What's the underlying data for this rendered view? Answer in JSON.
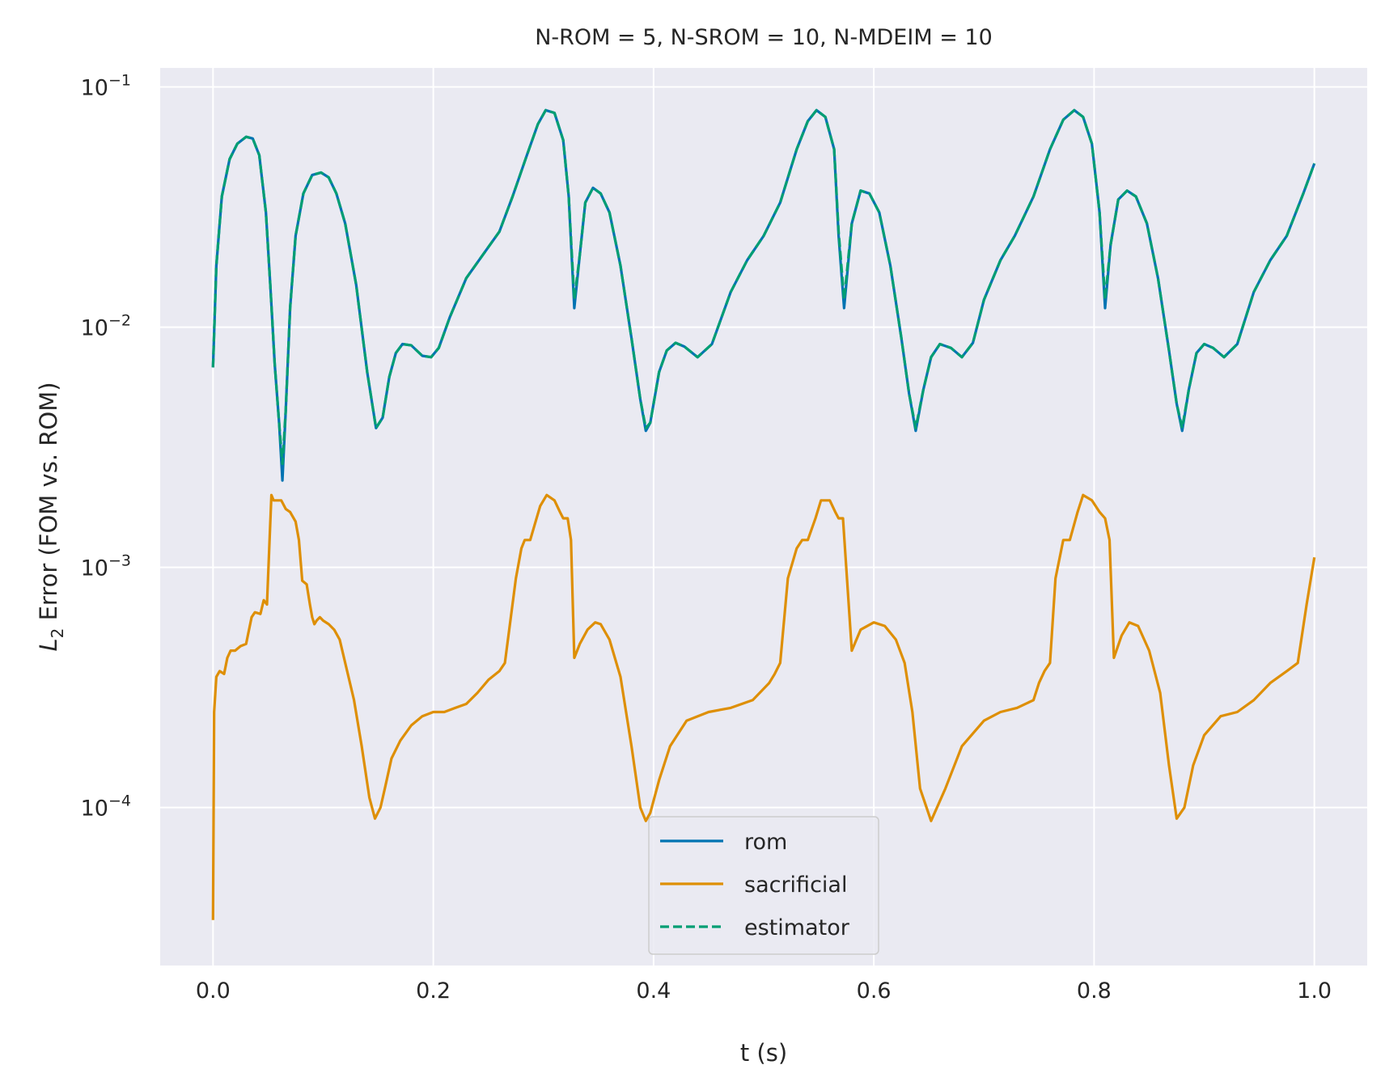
{
  "chart_data": {
    "type": "line",
    "title": "N-ROM = 5, N-SROM = 10, N-MDEIM = 10",
    "xlabel": "t (s)",
    "ylabel_main": "L",
    "ylabel_sub": "2",
    "ylabel_rest": " Error (FOM vs. ROM)",
    "yscale": "log",
    "xlim": [
      -0.048,
      1.048
    ],
    "ylim": [
      2.2e-05,
      0.12
    ],
    "grid": true,
    "background": "#eaeaf2",
    "legend_position": "lower center",
    "x_ticks": [
      {
        "value": 0.0,
        "label": "0.0"
      },
      {
        "value": 0.2,
        "label": "0.2"
      },
      {
        "value": 0.4,
        "label": "0.4"
      },
      {
        "value": 0.6,
        "label": "0.6"
      },
      {
        "value": 0.8,
        "label": "0.8"
      },
      {
        "value": 1.0,
        "label": "1.0"
      }
    ],
    "y_ticks": [
      {
        "value": 0.1,
        "base": "10",
        "exp": "−1"
      },
      {
        "value": 0.01,
        "base": "10",
        "exp": "−2"
      },
      {
        "value": 0.001,
        "base": "10",
        "exp": "−3"
      },
      {
        "value": 0.0001,
        "base": "10",
        "exp": "−4"
      }
    ],
    "series": [
      {
        "name": "rom",
        "color": "#0173b2",
        "dash": "solid",
        "x": [
          0.0,
          0.003,
          0.008,
          0.015,
          0.022,
          0.03,
          0.036,
          0.042,
          0.048,
          0.052,
          0.056,
          0.06,
          0.063,
          0.066,
          0.07,
          0.075,
          0.082,
          0.09,
          0.098,
          0.105,
          0.112,
          0.12,
          0.13,
          0.14,
          0.148,
          0.154,
          0.16,
          0.166,
          0.172,
          0.18,
          0.19,
          0.198,
          0.205,
          0.215,
          0.23,
          0.245,
          0.26,
          0.272,
          0.285,
          0.295,
          0.302,
          0.31,
          0.318,
          0.323,
          0.328,
          0.333,
          0.338,
          0.345,
          0.352,
          0.36,
          0.37,
          0.38,
          0.388,
          0.393,
          0.397,
          0.405,
          0.412,
          0.42,
          0.428,
          0.44,
          0.453,
          0.47,
          0.485,
          0.5,
          0.515,
          0.53,
          0.54,
          0.548,
          0.556,
          0.564,
          0.568,
          0.573,
          0.58,
          0.588,
          0.596,
          0.605,
          0.615,
          0.625,
          0.632,
          0.638,
          0.645,
          0.652,
          0.66,
          0.67,
          0.68,
          0.69,
          0.7,
          0.715,
          0.728,
          0.745,
          0.76,
          0.772,
          0.782,
          0.79,
          0.798,
          0.805,
          0.81,
          0.815,
          0.822,
          0.83,
          0.838,
          0.848,
          0.858,
          0.868,
          0.875,
          0.88,
          0.886,
          0.893,
          0.9,
          0.908,
          0.918,
          0.93,
          0.945,
          0.96,
          0.975,
          0.99,
          1.0
        ],
        "y": [
          0.0068,
          0.018,
          0.035,
          0.05,
          0.058,
          0.062,
          0.061,
          0.052,
          0.03,
          0.015,
          0.007,
          0.004,
          0.0023,
          0.0045,
          0.012,
          0.024,
          0.036,
          0.043,
          0.044,
          0.042,
          0.036,
          0.027,
          0.015,
          0.0065,
          0.0038,
          0.0042,
          0.0062,
          0.0078,
          0.0085,
          0.0084,
          0.0076,
          0.0075,
          0.0082,
          0.011,
          0.016,
          0.02,
          0.025,
          0.035,
          0.052,
          0.07,
          0.08,
          0.078,
          0.06,
          0.035,
          0.012,
          0.02,
          0.033,
          0.038,
          0.036,
          0.03,
          0.018,
          0.009,
          0.005,
          0.0037,
          0.004,
          0.0065,
          0.008,
          0.0086,
          0.0083,
          0.0075,
          0.0085,
          0.014,
          0.019,
          0.024,
          0.033,
          0.055,
          0.072,
          0.08,
          0.075,
          0.055,
          0.024,
          0.012,
          0.027,
          0.037,
          0.036,
          0.03,
          0.018,
          0.009,
          0.0053,
          0.0037,
          0.0055,
          0.0075,
          0.0085,
          0.0082,
          0.0075,
          0.0086,
          0.013,
          0.019,
          0.024,
          0.035,
          0.055,
          0.073,
          0.08,
          0.075,
          0.058,
          0.03,
          0.012,
          0.022,
          0.034,
          0.037,
          0.035,
          0.027,
          0.016,
          0.008,
          0.0048,
          0.0037,
          0.0055,
          0.0078,
          0.0085,
          0.0082,
          0.0075,
          0.0085,
          0.014,
          0.019,
          0.024,
          0.036,
          0.048
        ]
      },
      {
        "name": "sacrificial",
        "color": "#de8f05",
        "dash": "solid",
        "x": [
          0.0,
          0.001,
          0.003,
          0.006,
          0.01,
          0.013,
          0.016,
          0.02,
          0.025,
          0.03,
          0.035,
          0.038,
          0.043,
          0.046,
          0.049,
          0.051,
          0.053,
          0.055,
          0.058,
          0.062,
          0.066,
          0.07,
          0.075,
          0.078,
          0.081,
          0.085,
          0.088,
          0.09,
          0.092,
          0.094,
          0.097,
          0.1,
          0.105,
          0.11,
          0.115,
          0.12,
          0.128,
          0.135,
          0.142,
          0.147,
          0.152,
          0.156,
          0.162,
          0.17,
          0.18,
          0.19,
          0.2,
          0.21,
          0.22,
          0.23,
          0.24,
          0.25,
          0.26,
          0.265,
          0.27,
          0.275,
          0.28,
          0.283,
          0.288,
          0.292,
          0.297,
          0.303,
          0.31,
          0.315,
          0.318,
          0.322,
          0.325,
          0.328,
          0.333,
          0.34,
          0.347,
          0.352,
          0.36,
          0.37,
          0.38,
          0.388,
          0.393,
          0.397,
          0.405,
          0.415,
          0.43,
          0.45,
          0.47,
          0.49,
          0.505,
          0.51,
          0.515,
          0.522,
          0.53,
          0.535,
          0.54,
          0.547,
          0.552,
          0.56,
          0.565,
          0.568,
          0.572,
          0.58,
          0.588,
          0.6,
          0.61,
          0.62,
          0.628,
          0.635,
          0.642,
          0.652,
          0.665,
          0.68,
          0.7,
          0.715,
          0.73,
          0.745,
          0.75,
          0.755,
          0.76,
          0.765,
          0.772,
          0.778,
          0.785,
          0.79,
          0.798,
          0.805,
          0.81,
          0.814,
          0.818,
          0.825,
          0.832,
          0.84,
          0.85,
          0.86,
          0.868,
          0.875,
          0.882,
          0.89,
          0.9,
          0.915,
          0.93,
          0.945,
          0.96,
          0.975,
          0.985,
          0.993,
          1.0
        ],
        "y": [
          3.4e-05,
          0.00025,
          0.00035,
          0.00037,
          0.00036,
          0.00042,
          0.00045,
          0.00045,
          0.00047,
          0.00048,
          0.00062,
          0.00065,
          0.00064,
          0.00073,
          0.0007,
          0.0012,
          0.002,
          0.0019,
          0.0019,
          0.0019,
          0.00175,
          0.0017,
          0.00155,
          0.0013,
          0.00088,
          0.00085,
          0.0007,
          0.00062,
          0.00058,
          0.0006,
          0.00062,
          0.0006,
          0.00058,
          0.00055,
          0.0005,
          0.0004,
          0.00028,
          0.00018,
          0.00011,
          9e-05,
          0.0001,
          0.00012,
          0.00016,
          0.00019,
          0.00022,
          0.00024,
          0.00025,
          0.00025,
          0.00026,
          0.00027,
          0.0003,
          0.00034,
          0.00037,
          0.0004,
          0.0006,
          0.0009,
          0.0012,
          0.0013,
          0.0013,
          0.0015,
          0.0018,
          0.002,
          0.0019,
          0.0017,
          0.0016,
          0.0016,
          0.0013,
          0.00042,
          0.00048,
          0.00055,
          0.00059,
          0.00058,
          0.0005,
          0.00035,
          0.00018,
          0.0001,
          8.8e-05,
          9.5e-05,
          0.00013,
          0.00018,
          0.00023,
          0.00025,
          0.00026,
          0.00028,
          0.00033,
          0.00036,
          0.0004,
          0.0009,
          0.0012,
          0.0013,
          0.0013,
          0.0016,
          0.0019,
          0.0019,
          0.0017,
          0.0016,
          0.0016,
          0.00045,
          0.00055,
          0.00059,
          0.00057,
          0.0005,
          0.0004,
          0.00025,
          0.00012,
          8.8e-05,
          0.00012,
          0.00018,
          0.00023,
          0.00025,
          0.00026,
          0.00028,
          0.00033,
          0.00037,
          0.0004,
          0.0009,
          0.0013,
          0.0013,
          0.0017,
          0.002,
          0.0019,
          0.0017,
          0.0016,
          0.0013,
          0.00042,
          0.00052,
          0.00059,
          0.00057,
          0.00045,
          0.0003,
          0.00015,
          9e-05,
          0.0001,
          0.00015,
          0.0002,
          0.00024,
          0.00025,
          0.00028,
          0.00033,
          0.00037,
          0.0004,
          0.0007,
          0.0011
        ]
      },
      {
        "name": "estimator",
        "color": "#029e73",
        "dash": "dashed",
        "x": [
          0.0,
          0.003,
          0.008,
          0.015,
          0.022,
          0.03,
          0.036,
          0.042,
          0.048,
          0.052,
          0.056,
          0.06,
          0.063,
          0.066,
          0.07,
          0.075,
          0.082,
          0.09,
          0.098,
          0.105,
          0.112,
          0.12,
          0.13,
          0.14,
          0.148,
          0.154,
          0.16,
          0.166,
          0.172,
          0.18,
          0.19,
          0.198,
          0.205,
          0.215,
          0.23,
          0.245,
          0.26,
          0.272,
          0.285,
          0.295,
          0.302,
          0.31,
          0.318,
          0.323,
          0.328,
          0.333,
          0.338,
          0.345,
          0.352,
          0.36,
          0.37,
          0.38,
          0.388,
          0.393,
          0.397,
          0.405,
          0.412,
          0.42,
          0.428,
          0.44,
          0.453,
          0.47,
          0.485,
          0.5,
          0.515,
          0.53,
          0.54,
          0.548,
          0.556,
          0.564,
          0.568,
          0.573,
          0.58,
          0.588,
          0.596,
          0.605,
          0.615,
          0.625,
          0.632,
          0.638,
          0.645,
          0.652,
          0.66,
          0.67,
          0.68,
          0.69,
          0.7,
          0.715,
          0.728,
          0.745,
          0.76,
          0.772,
          0.782,
          0.79,
          0.798,
          0.805,
          0.81,
          0.815,
          0.822,
          0.83,
          0.838,
          0.848,
          0.858,
          0.868,
          0.875,
          0.88,
          0.886,
          0.893,
          0.9,
          0.908,
          0.918,
          0.93,
          0.945,
          0.96,
          0.975,
          0.99,
          1.0
        ],
        "y": [
          0.0068,
          0.018,
          0.035,
          0.05,
          0.058,
          0.062,
          0.061,
          0.052,
          0.03,
          0.015,
          0.007,
          0.004,
          0.0027,
          0.0045,
          0.012,
          0.024,
          0.036,
          0.043,
          0.044,
          0.042,
          0.036,
          0.027,
          0.015,
          0.0065,
          0.0038,
          0.0042,
          0.0062,
          0.0078,
          0.0085,
          0.0084,
          0.0076,
          0.0075,
          0.0082,
          0.011,
          0.016,
          0.02,
          0.025,
          0.035,
          0.052,
          0.07,
          0.08,
          0.078,
          0.06,
          0.035,
          0.013,
          0.02,
          0.033,
          0.038,
          0.036,
          0.03,
          0.018,
          0.009,
          0.005,
          0.0038,
          0.004,
          0.0065,
          0.008,
          0.0086,
          0.0083,
          0.0075,
          0.0085,
          0.014,
          0.019,
          0.024,
          0.033,
          0.055,
          0.072,
          0.08,
          0.075,
          0.055,
          0.025,
          0.013,
          0.027,
          0.037,
          0.036,
          0.03,
          0.018,
          0.009,
          0.0053,
          0.0038,
          0.0055,
          0.0075,
          0.0085,
          0.0082,
          0.0075,
          0.0086,
          0.013,
          0.019,
          0.024,
          0.035,
          0.055,
          0.073,
          0.08,
          0.075,
          0.058,
          0.03,
          0.013,
          0.022,
          0.034,
          0.037,
          0.035,
          0.027,
          0.016,
          0.008,
          0.0048,
          0.0038,
          0.0055,
          0.0078,
          0.0085,
          0.0082,
          0.0075,
          0.0085,
          0.014,
          0.019,
          0.024,
          0.036,
          0.048
        ]
      }
    ]
  }
}
